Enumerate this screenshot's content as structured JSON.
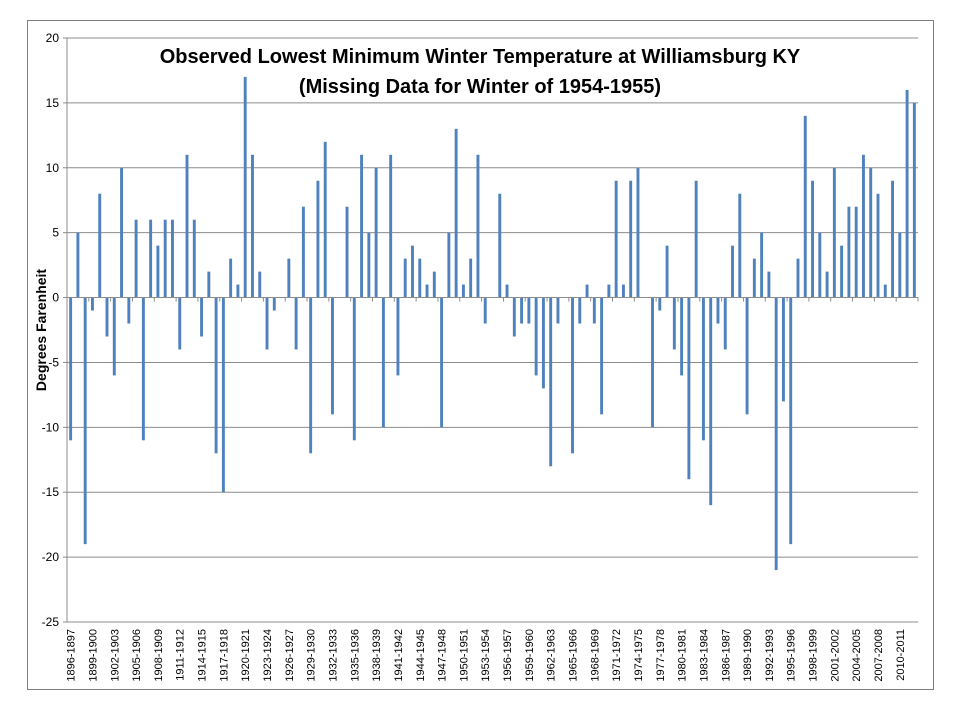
{
  "chart_data": {
    "type": "bar",
    "title": "Observed Lowest Minimum Winter Temperature at Williamsburg KY",
    "subtitle": "(Missing Data for Winter of 1954-1955)",
    "xlabel": "",
    "ylabel": "Degrees Farenheit",
    "ylim": [
      -25,
      20
    ],
    "y_ticks": [
      20,
      15,
      10,
      5,
      0,
      -5,
      -10,
      -15,
      -20,
      -25
    ],
    "grid": true,
    "legend": "none",
    "bar_color": "#4f81bd",
    "categories": [
      "1896-1897",
      "1897-1898",
      "1898-1899",
      "1899-1900",
      "1900-1901",
      "1901-1902",
      "1902-1903",
      "1903-1904",
      "1904-1905",
      "1905-1906",
      "1906-1907",
      "1907-1908",
      "1908-1909",
      "1909-1910",
      "1910-1911",
      "1911-1912",
      "1912-1913",
      "1913-1914",
      "1914-1915",
      "1915-1916",
      "1916-1917",
      "1917-1918",
      "1918-1919",
      "1919-1920",
      "1920-1921",
      "1921-1922",
      "1922-1923",
      "1923-1924",
      "1924-1925",
      "1925-1926",
      "1926-1927",
      "1927-1928",
      "1928-1929",
      "1929-1930",
      "1930-1931",
      "1931-1932",
      "1932-1933",
      "1933-1934",
      "1934-1935",
      "1935-1936",
      "1936-1937",
      "1937-1938",
      "1938-1939",
      "1939-1940",
      "1940-1941",
      "1941-1942",
      "1942-1943",
      "1943-1944",
      "1944-1945",
      "1945-1946",
      "1946-1947",
      "1947-1948",
      "1948-1949",
      "1949-1950",
      "1950-1951",
      "1951-1952",
      "1952-1953",
      "1953-1954",
      "1954-1955",
      "1955-1956",
      "1956-1957",
      "1957-1958",
      "1958-1959",
      "1959-1960",
      "1960-1961",
      "1961-1962",
      "1962-1963",
      "1963-1964",
      "1964-1965",
      "1965-1966",
      "1966-1967",
      "1967-1968",
      "1968-1969",
      "1969-1970",
      "1970-1971",
      "1971-1972",
      "1972-1973",
      "1973-1974",
      "1974-1975",
      "1975-1976",
      "1976-1977",
      "1977-1978",
      "1978-1979",
      "1979-1980",
      "1980-1981",
      "1981-1982",
      "1982-1983",
      "1983-1984",
      "1984-1985",
      "1985-1986",
      "1986-1987",
      "1987-1988",
      "1988-1989",
      "1989-1990",
      "1990-1991",
      "1991-1992",
      "1992-1993",
      "1993-1994",
      "1994-1995",
      "1995-1996",
      "1996-1997",
      "1997-1998",
      "1998-1999",
      "1999-2000",
      "2000-2001",
      "2001-2002",
      "2002-2003",
      "2003-2004",
      "2004-2005",
      "2005-2006",
      "2006-2007",
      "2007-2008",
      "2008-2009",
      "2009-2010",
      "2010-2011",
      "2011-2012",
      "2012-2013"
    ],
    "values": [
      -11,
      5,
      -19,
      -1,
      8,
      -3,
      -6,
      10,
      -2,
      6,
      -11,
      6,
      4,
      6,
      6,
      -4,
      11,
      6,
      -3,
      2,
      -12,
      -15,
      3,
      1,
      17,
      11,
      2,
      -4,
      -1,
      null,
      3,
      -4,
      7,
      -12,
      9,
      12,
      -9,
      null,
      7,
      -11,
      11,
      5,
      10,
      -10,
      11,
      -6,
      3,
      4,
      3,
      1,
      2,
      -10,
      5,
      13,
      1,
      3,
      11,
      -2,
      null,
      8,
      1,
      -3,
      -2,
      -2,
      -6,
      -7,
      -13,
      -2,
      null,
      -12,
      -2,
      1,
      -2,
      -9,
      1,
      9,
      1,
      9,
      10,
      null,
      -10,
      -1,
      4,
      -4,
      -6,
      -14,
      9,
      -11,
      -16,
      -2,
      -4,
      4,
      8,
      -9,
      3,
      5,
      2,
      -21,
      -8,
      -19,
      3,
      14,
      9,
      5,
      2,
      10,
      4,
      7,
      7,
      11,
      10,
      8,
      1,
      9,
      5,
      16,
      15
    ],
    "shown_category_labels": [
      "1896-1897",
      "1899-1900",
      "1902-1903",
      "1905-1906",
      "1908-1909",
      "1911-1912",
      "1914-1915",
      "1917-1918",
      "1920-1921",
      "1923-1924",
      "1926-1927",
      "1929-1930",
      "1932-1933",
      "1935-1936",
      "1938-1939",
      "1941-1942",
      "1944-1945",
      "1947-1948",
      "1950-1951",
      "1953-1954",
      "1956-1957",
      "1959-1960",
      "1962-1963",
      "1965-1966",
      "1968-1969",
      "1971-1972",
      "1974-1975",
      "1977-1978",
      "1980-1981",
      "1983-1984",
      "1986-1987",
      "1989-1990",
      "1992-1993",
      "1995-1996",
      "1998-1999",
      "2001-2002",
      "2004-2005",
      "2007-2008",
      "2010-2011"
    ]
  }
}
